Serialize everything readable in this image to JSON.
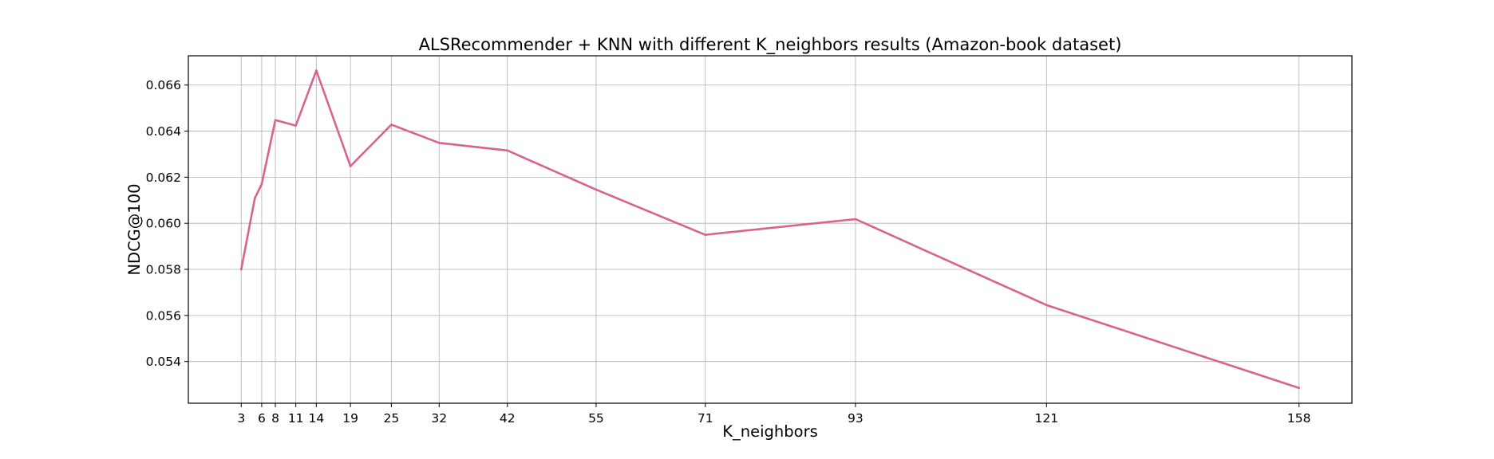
{
  "chart_data": {
    "type": "line",
    "title": "ALSRecommender + KNN with different K_neighbors results (Amazon-book dataset)",
    "xlabel": "K_neighbors",
    "ylabel": "NDCG@100",
    "x_ticks": [
      "3",
      "6",
      "8",
      "11",
      "14",
      "19",
      "25",
      "32",
      "42",
      "55",
      "71",
      "93",
      "121",
      "158"
    ],
    "y_ticks": [
      "0.054",
      "0.056",
      "0.058",
      "0.060",
      "0.062",
      "0.064",
      "0.066"
    ],
    "xlim": [
      -4.75,
      165.75
    ],
    "ylim": [
      0.05219,
      0.06727
    ],
    "grid": true,
    "series": [
      {
        "color": "#d9638f",
        "x": [
          3,
          5,
          6,
          8,
          11,
          14,
          19,
          25,
          32,
          42,
          55,
          71,
          93,
          121,
          158
        ],
        "y": [
          0.058,
          0.0611,
          0.0617,
          0.06448,
          0.06424,
          0.06663,
          0.06248,
          0.06428,
          0.06349,
          0.06316,
          0.06146,
          0.0595,
          0.06018,
          0.05645,
          0.05285
        ]
      }
    ]
  }
}
